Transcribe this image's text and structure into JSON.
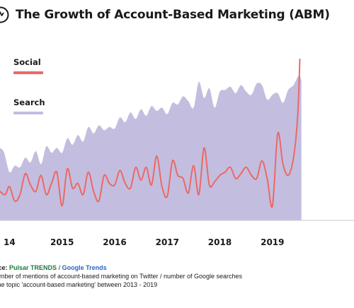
{
  "header": {
    "title": "The Growth of Account-Based Marketing (ABM)",
    "logo_icon": "pulsar-logo-icon"
  },
  "legend": {
    "social_label": "Social",
    "search_label": "Search"
  },
  "colors": {
    "social": "#ec6866",
    "search": "#c3bedf",
    "baseline": "#c9c9c9",
    "source_green": "#1c7a3e",
    "source_blue": "#2b64c4"
  },
  "footer": {
    "source_prefix": "rce:",
    "source_pulsar": "Pulsar TRENDS",
    "source_sep": " / ",
    "source_google": "Google Trends",
    "note_line1": "umber of mentions of account-based marketing on Twitter / number of Google searches",
    "note_line2": "the topic 'account-based marketing' between 2013 - 2019"
  },
  "chart_data": {
    "type": "area",
    "title": "The Growth of Account-Based Marketing (ABM)",
    "xlabel": "",
    "ylabel": "",
    "grid": false,
    "legend_position": "top-left",
    "x_ticks": [
      "14",
      "2015",
      "2016",
      "2017",
      "2018",
      "2019"
    ],
    "x_tick_values": [
      2014.0,
      2015.0,
      2016.0,
      2017.0,
      2018.0,
      2019.0
    ],
    "xlim": [
      2013.82,
      2020.55
    ],
    "ylim": [
      0,
      100
    ],
    "series": [
      {
        "name": "Search",
        "type": "area",
        "x": [
          2013.82,
          2013.9,
          2014.0,
          2014.1,
          2014.2,
          2014.3,
          2014.4,
          2014.5,
          2014.6,
          2014.7,
          2014.8,
          2014.9,
          2015.0,
          2015.1,
          2015.2,
          2015.3,
          2015.4,
          2015.5,
          2015.6,
          2015.7,
          2015.8,
          2015.9,
          2016.0,
          2016.1,
          2016.2,
          2016.3,
          2016.4,
          2016.5,
          2016.6,
          2016.7,
          2016.8,
          2016.9,
          2017.0,
          2017.1,
          2017.2,
          2017.3,
          2017.4,
          2017.5,
          2017.6,
          2017.7,
          2017.8,
          2017.9,
          2018.0,
          2018.1,
          2018.2,
          2018.3,
          2018.4,
          2018.5,
          2018.6,
          2018.7,
          2018.8,
          2018.9,
          2019.0,
          2019.1,
          2019.2,
          2019.3,
          2019.4,
          2019.5,
          2019.55
        ],
        "values": [
          45,
          42,
          30,
          34,
          33,
          39,
          36,
          43,
          35,
          46,
          42,
          45,
          42,
          51,
          47,
          53,
          49,
          58,
          54,
          59,
          56,
          58,
          57,
          64,
          61,
          67,
          63,
          69,
          65,
          71,
          68,
          70,
          66,
          73,
          72,
          77,
          74,
          70,
          86,
          76,
          82,
          70,
          80,
          81,
          83,
          79,
          84,
          80,
          78,
          85,
          84,
          75,
          78,
          79,
          73,
          81,
          84,
          90,
          87
        ]
      },
      {
        "name": "Social",
        "type": "line",
        "x": [
          2013.82,
          2013.92,
          2014.0,
          2014.1,
          2014.2,
          2014.3,
          2014.4,
          2014.5,
          2014.6,
          2014.7,
          2014.8,
          2014.9,
          2015.0,
          2015.1,
          2015.2,
          2015.3,
          2015.4,
          2015.5,
          2015.6,
          2015.7,
          2015.8,
          2015.9,
          2016.0,
          2016.1,
          2016.2,
          2016.3,
          2016.4,
          2016.5,
          2016.6,
          2016.7,
          2016.8,
          2016.9,
          2017.0,
          2017.1,
          2017.2,
          2017.3,
          2017.4,
          2017.5,
          2017.6,
          2017.7,
          2017.8,
          2017.9,
          2018.0,
          2018.1,
          2018.2,
          2018.3,
          2018.4,
          2018.5,
          2018.6,
          2018.7,
          2018.8,
          2018.9,
          2019.0,
          2019.1,
          2019.2,
          2019.3,
          2019.4,
          2019.48,
          2019.52
        ],
        "values": [
          18,
          16,
          21,
          12,
          16,
          29,
          22,
          18,
          28,
          16,
          23,
          30,
          9,
          32,
          20,
          23,
          16,
          30,
          18,
          12,
          28,
          23,
          22,
          31,
          23,
          20,
          33,
          25,
          33,
          22,
          40,
          21,
          15,
          37,
          28,
          26,
          17,
          34,
          16,
          45,
          22,
          24,
          28,
          30,
          33,
          26,
          29,
          33,
          28,
          26,
          37,
          26,
          9,
          54,
          35,
          28,
          39,
          65,
          100
        ]
      }
    ]
  }
}
